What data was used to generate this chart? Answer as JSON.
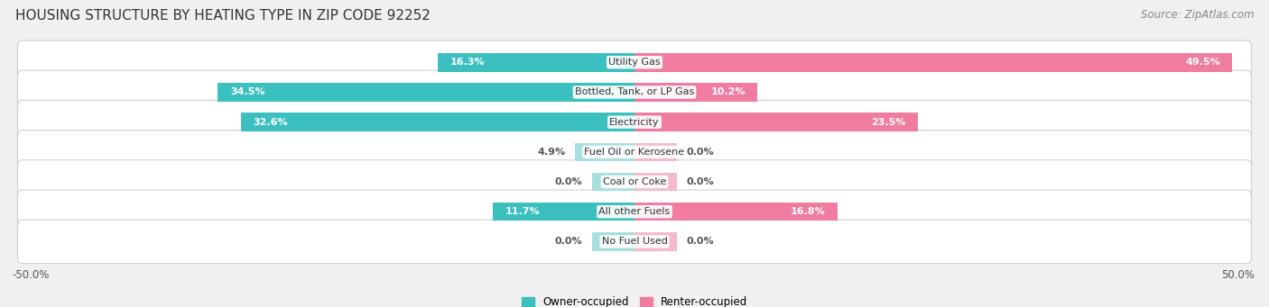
{
  "title": "HOUSING STRUCTURE BY HEATING TYPE IN ZIP CODE 92252",
  "source": "Source: ZipAtlas.com",
  "categories": [
    "Utility Gas",
    "Bottled, Tank, or LP Gas",
    "Electricity",
    "Fuel Oil or Kerosene",
    "Coal or Coke",
    "All other Fuels",
    "No Fuel Used"
  ],
  "owner_values": [
    16.3,
    34.5,
    32.6,
    4.9,
    0.0,
    11.7,
    0.0
  ],
  "renter_values": [
    49.5,
    10.2,
    23.5,
    0.0,
    0.0,
    16.8,
    0.0
  ],
  "owner_color": "#3BBFBF",
  "owner_color_light": "#A8DEDE",
  "renter_color": "#F07CA0",
  "renter_color_light": "#F5B8CC",
  "owner_label": "Owner-occupied",
  "renter_label": "Renter-occupied",
  "xlim_left": -50,
  "xlim_right": 50,
  "background_color": "#f0f0f0",
  "row_bg_color": "#f7f7f7",
  "title_fontsize": 11,
  "source_fontsize": 8.5,
  "label_fontsize": 8,
  "cat_fontsize": 8,
  "bar_height": 0.62,
  "stub_size": 3.5,
  "inside_threshold": 8
}
